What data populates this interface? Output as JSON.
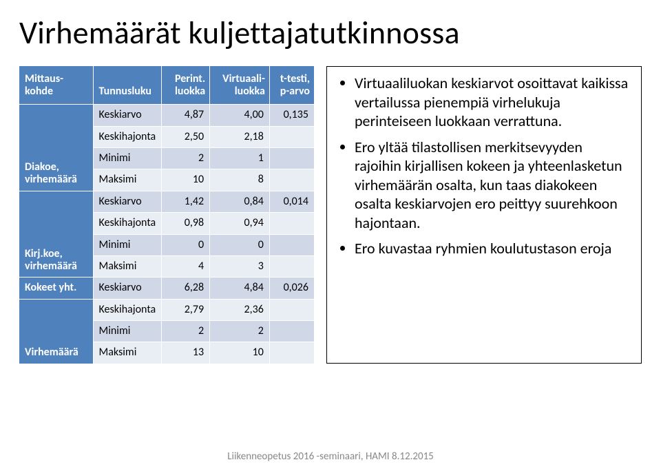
{
  "slide": {
    "title": "Virhemäärät kuljettajatutkinnossa",
    "footer": "Liikenneopetus 2016 -seminaari, HAMI 8.12.2015"
  },
  "table": {
    "header_bg": "#4f81bd",
    "header_fg": "#ffffff",
    "band_a": "#d0d8e8",
    "band_b": "#e9edf4",
    "columns": [
      {
        "label": "Mittaus-kohde",
        "align": "left"
      },
      {
        "label": "Tunnusluku",
        "align": "left"
      },
      {
        "label": "Perint. luokka",
        "align": "right"
      },
      {
        "label": "Virtuaali-luokka",
        "align": "right"
      },
      {
        "label": "t-testi, p-arvo",
        "align": "right"
      }
    ],
    "sections": [
      {
        "rowhead": "Diakoe, virhemäärä",
        "rows": [
          {
            "stat": "Keskiarvo",
            "c1": "4,87",
            "c2": "4,00",
            "c3": "0,135"
          },
          {
            "stat": "Keskihajonta",
            "c1": "2,50",
            "c2": "2,18",
            "c3": ""
          },
          {
            "stat": "Minimi",
            "c1": "2",
            "c2": "1",
            "c3": ""
          },
          {
            "stat": "Maksimi",
            "c1": "10",
            "c2": "8",
            "c3": ""
          }
        ]
      },
      {
        "rowhead": "Kirj.koe, virhemäärä",
        "rows": [
          {
            "stat": "Keskiarvo",
            "c1": "1,42",
            "c2": "0,84",
            "c3": "0,014"
          },
          {
            "stat": "Keskihajonta",
            "c1": "0,98",
            "c2": "0,94",
            "c3": ""
          },
          {
            "stat": "Minimi",
            "c1": "0",
            "c2": "0",
            "c3": ""
          },
          {
            "stat": "Maksimi",
            "c1": "4",
            "c2": "3",
            "c3": ""
          }
        ]
      },
      {
        "rowhead": "Kokeet yht.",
        "single_row": {
          "stat": "Keskiarvo",
          "c1": "6,28",
          "c2": "4,84",
          "c3": "0,026"
        }
      },
      {
        "rowhead": "Virhemäärä",
        "rows": [
          {
            "stat": "Keskihajonta",
            "c1": "2,79",
            "c2": "2,36",
            "c3": ""
          },
          {
            "stat": "Minimi",
            "c1": "2",
            "c2": "2",
            "c3": ""
          },
          {
            "stat": "Maksimi",
            "c1": "13",
            "c2": "10",
            "c3": ""
          }
        ],
        "first_on_same_row": true
      }
    ]
  },
  "bullets": {
    "items": [
      "Virtuaaliluokan keskiarvot osoittavat kaikissa vertailussa pienempiä virhelukuja perinteiseen luokkaan verrattuna.",
      "Ero yltää tilastollisen merkitsevyyden rajoihin kirjallisen kokeen ja yhteenlasketun virhemäärän osalta, kun taas diakokeen osalta keskiarvojen ero peittyy suurehkoon hajontaan.",
      "Ero kuvastaa ryhmien koulutustason eroja"
    ]
  }
}
